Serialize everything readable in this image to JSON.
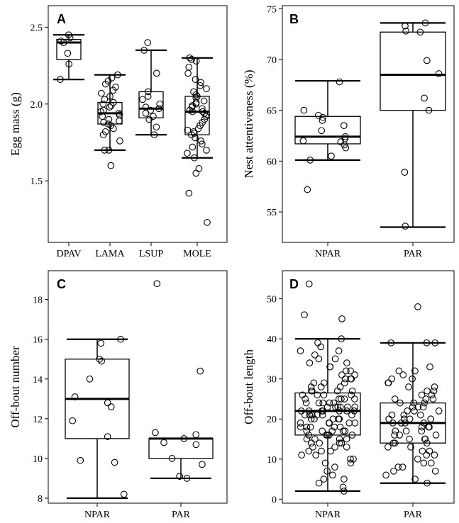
{
  "chart_data": [
    {
      "panel": "A",
      "type": "box",
      "ylabel": "Egg mass (g)",
      "ylim": [
        1.1,
        2.64
      ],
      "yticks": [
        1.5,
        2.0,
        2.5
      ],
      "yticklabels": [
        "1.5",
        "2.0",
        "2.5"
      ],
      "categories": [
        "DPAV",
        "LAMA",
        "LSUP",
        "MOLE"
      ],
      "boxes": [
        {
          "low": 2.16,
          "q1": 2.29,
          "median": 2.4,
          "q3": 2.42,
          "high": 2.45
        },
        {
          "low": 1.7,
          "q1": 1.87,
          "median": 1.94,
          "q3": 2.01,
          "high": 2.19
        },
        {
          "low": 1.8,
          "q1": 1.91,
          "median": 1.97,
          "q3": 2.08,
          "high": 2.35
        },
        {
          "low": 1.65,
          "q1": 1.8,
          "median": 1.95,
          "q3": 2.05,
          "high": 2.3
        }
      ],
      "points": [
        [
          2.45,
          2.43,
          2.41,
          2.4,
          2.33,
          2.26,
          2.16
        ],
        [
          2.19,
          2.17,
          2.15,
          2.13,
          2.11,
          2.09,
          2.07,
          2.05,
          2.03,
          2.01,
          2.0,
          1.99,
          1.98,
          1.96,
          1.95,
          1.94,
          1.93,
          1.92,
          1.9,
          1.89,
          1.88,
          1.87,
          1.86,
          1.84,
          1.82,
          1.8,
          1.76,
          1.7,
          1.7,
          1.6
        ],
        [
          2.4,
          2.35,
          2.2,
          2.08,
          2.05,
          2.03,
          2.0,
          1.98,
          1.97,
          1.96,
          1.94,
          1.92,
          1.9,
          1.85,
          1.8
        ],
        [
          2.3,
          2.29,
          2.28,
          2.24,
          2.2,
          2.16,
          2.14,
          2.12,
          2.1,
          2.08,
          2.06,
          2.05,
          2.04,
          2.02,
          2.01,
          2.0,
          1.99,
          1.98,
          1.97,
          1.96,
          1.95,
          1.95,
          1.94,
          1.93,
          1.92,
          1.9,
          1.88,
          1.86,
          1.84,
          1.83,
          1.82,
          1.81,
          1.8,
          1.78,
          1.76,
          1.74,
          1.72,
          1.7,
          1.68,
          1.65,
          1.58,
          1.55,
          1.42,
          1.23
        ]
      ]
    },
    {
      "panel": "B",
      "type": "box",
      "ylabel": "Nest attentiveness (%)",
      "ylim": [
        52.0,
        75.3
      ],
      "yticks": [
        55,
        60,
        65,
        70,
        75
      ],
      "yticklabels": [
        "55",
        "60",
        "65",
        "70",
        "75"
      ],
      "categories": [
        "NPAR",
        "PAR"
      ],
      "boxes": [
        {
          "low": 60.1,
          "q1": 61.7,
          "median": 62.4,
          "q3": 64.4,
          "high": 67.9
        },
        {
          "low": 53.5,
          "q1": 65.0,
          "median": 68.5,
          "q3": 72.7,
          "high": 73.6
        }
      ],
      "points": [
        [
          67.8,
          65.0,
          64.5,
          64.3,
          64.0,
          63.5,
          63.0,
          62.4,
          62.2,
          62.0,
          61.9,
          61.6,
          61.3,
          60.5,
          60.1,
          57.2
        ],
        [
          73.6,
          73.3,
          72.8,
          72.7,
          69.9,
          68.6,
          66.2,
          65.0,
          58.9,
          53.6
        ]
      ]
    },
    {
      "panel": "C",
      "type": "box",
      "ylabel": "Off-bout number",
      "ylim": [
        7.75,
        19.45
      ],
      "yticks": [
        8,
        10,
        12,
        14,
        16,
        18
      ],
      "yticklabels": [
        "8",
        "10",
        "12",
        "14",
        "16",
        "18"
      ],
      "categories": [
        "NPAR",
        "PAR"
      ],
      "boxes": [
        {
          "low": 8.0,
          "q1": 11.0,
          "median": 13.0,
          "q3": 15.0,
          "high": 16.0
        },
        {
          "low": 9.0,
          "q1": 10.0,
          "median": 11.0,
          "q3": 11.0,
          "high": 11.0
        }
      ],
      "points": [
        [
          16.0,
          15.8,
          15.0,
          14.9,
          14.0,
          13.1,
          12.8,
          12.6,
          11.9,
          11.1,
          9.9,
          9.8,
          8.2
        ],
        [
          18.8,
          14.4,
          11.3,
          11.2,
          11.0,
          10.8,
          10.7,
          10.0,
          9.7,
          9.1,
          9.0
        ]
      ]
    },
    {
      "panel": "D",
      "type": "box",
      "ylabel": "Off-bout length",
      "ylim": [
        -1.0,
        57.0
      ],
      "yticks": [
        0,
        10,
        20,
        30,
        40,
        50
      ],
      "yticklabels": [
        "0",
        "10",
        "20",
        "30",
        "40",
        "50"
      ],
      "categories": [
        "NPAR",
        "PAR"
      ],
      "boxes": [
        {
          "low": 2.0,
          "q1": 16.0,
          "median": 22.0,
          "q3": 26.5,
          "high": 40.0
        },
        {
          "low": 4.0,
          "q1": 14.0,
          "median": 19.0,
          "q3": 24.0,
          "high": 39.0
        }
      ],
      "points": [
        [
          53.7,
          46.0,
          45.0,
          40.0,
          39.0,
          38.0,
          37.0,
          37.0,
          36.0,
          35.0,
          35.0,
          34.0,
          34.0,
          33.0,
          33.0,
          32.0,
          32.0,
          31.0,
          31.0,
          30.0,
          30.0,
          30.0,
          29.0,
          29.0,
          29.0,
          28.0,
          28.0,
          28.0,
          27.0,
          27.0,
          27.0,
          27.0,
          26.0,
          26.0,
          26.0,
          26.0,
          25.0,
          25.0,
          25.0,
          25.0,
          25.0,
          24.0,
          24.0,
          24.0,
          24.0,
          24.0,
          23.0,
          23.0,
          23.0,
          23.0,
          23.0,
          23.0,
          22.0,
          22.0,
          22.0,
          22.0,
          22.0,
          22.0,
          22.0,
          21.0,
          21.0,
          21.0,
          21.0,
          21.0,
          21.0,
          20.0,
          20.0,
          20.0,
          20.0,
          20.0,
          20.0,
          19.0,
          19.0,
          19.0,
          19.0,
          19.0,
          19.0,
          18.0,
          18.0,
          18.0,
          18.0,
          18.0,
          17.0,
          17.0,
          17.0,
          17.0,
          17.0,
          16.0,
          16.0,
          16.0,
          16.0,
          16.0,
          15.0,
          15.0,
          15.0,
          15.0,
          14.0,
          14.0,
          14.0,
          14.0,
          13.0,
          13.0,
          13.0,
          12.0,
          12.0,
          12.0,
          11.0,
          11.0,
          10.0,
          10.0,
          9.0,
          9.0,
          8.0,
          7.0,
          6.0,
          5.0,
          5.0,
          4.0,
          3.0,
          2.0
        ],
        [
          48.0,
          39.0,
          39.0,
          39.0,
          33.0,
          32.0,
          32.0,
          31.0,
          30.0,
          30.0,
          29.0,
          29.0,
          28.0,
          28.0,
          27.0,
          27.0,
          26.0,
          26.0,
          25.0,
          25.0,
          25.0,
          24.0,
          24.0,
          24.0,
          23.0,
          23.0,
          23.0,
          22.0,
          22.0,
          22.0,
          21.0,
          21.0,
          21.0,
          20.0,
          20.0,
          20.0,
          20.0,
          19.0,
          19.0,
          19.0,
          19.0,
          18.0,
          18.0,
          18.0,
          17.0,
          17.0,
          17.0,
          16.0,
          16.0,
          16.0,
          15.0,
          15.0,
          15.0,
          14.0,
          14.0,
          14.0,
          13.0,
          13.0,
          12.0,
          12.0,
          11.0,
          11.0,
          10.0,
          9.0,
          9.0,
          8.0,
          8.0,
          7.0,
          7.0,
          6.0,
          5.0,
          4.0
        ]
      ]
    }
  ]
}
